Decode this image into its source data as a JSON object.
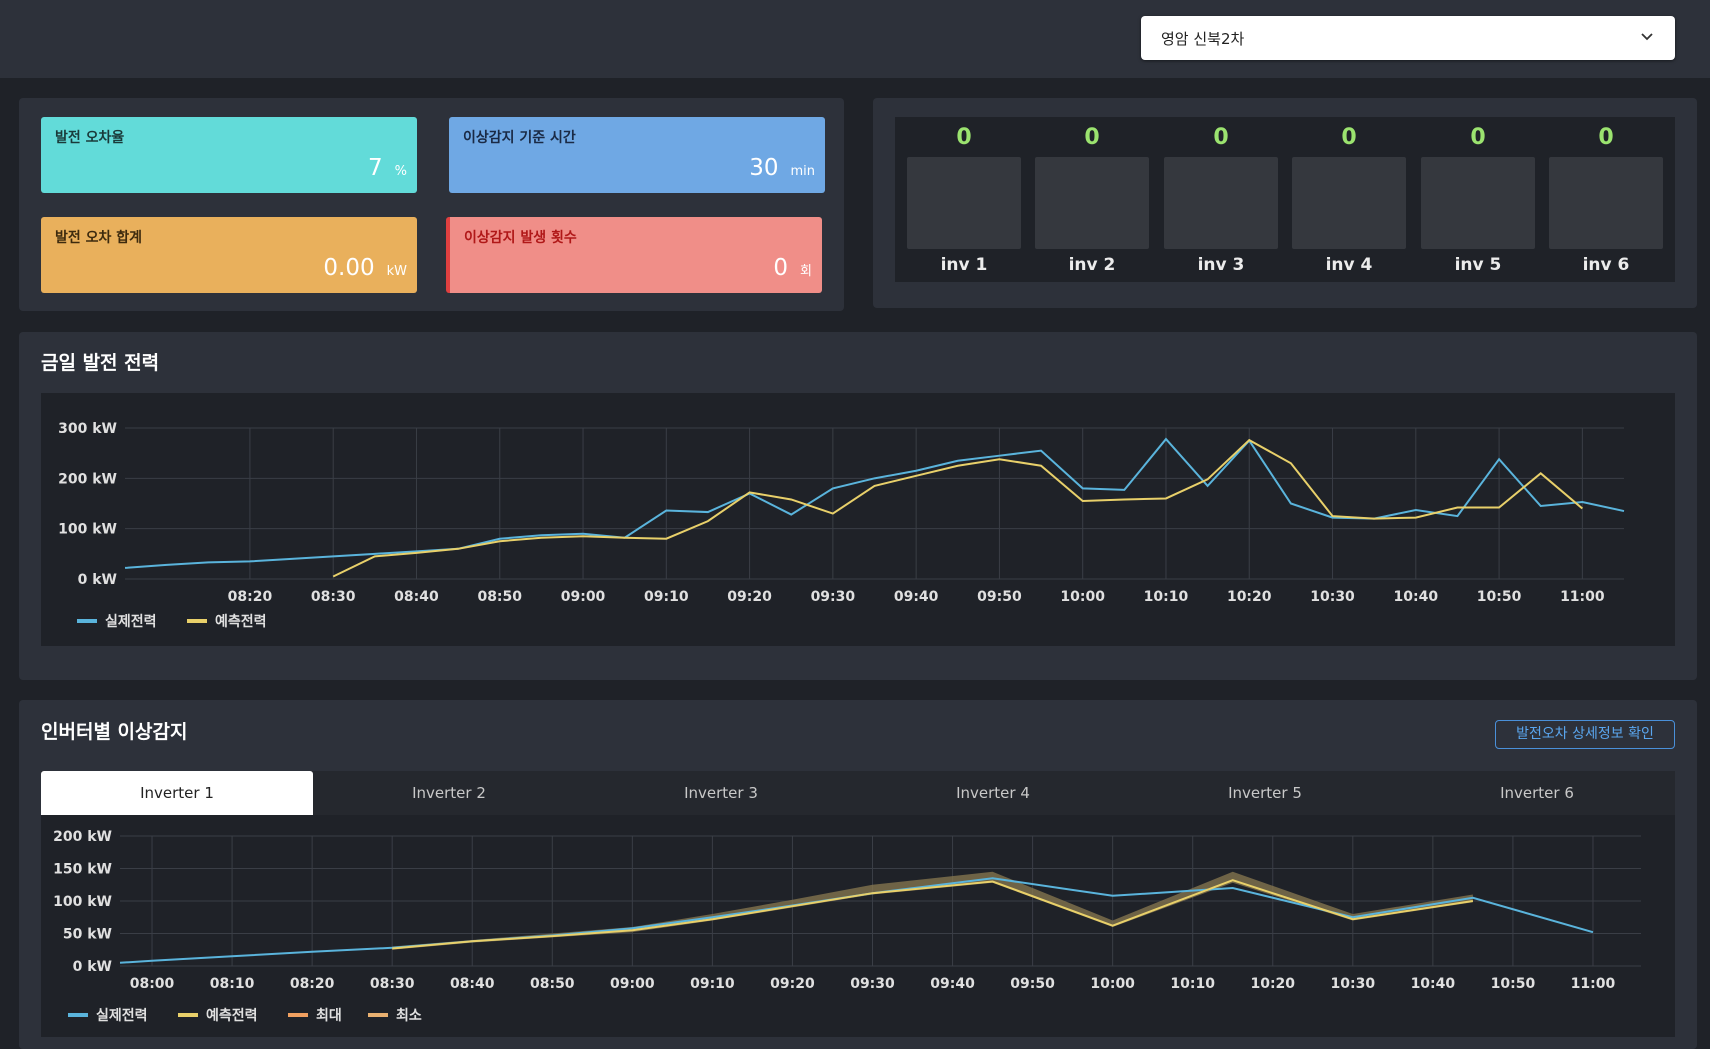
{
  "site_select": {
    "value": "영암 신북2차"
  },
  "kpi": {
    "error_rate": {
      "label": "발전 오차율",
      "value": "7",
      "unit": "%"
    },
    "anomaly_time": {
      "label": "이상감지 기준 시간",
      "value": "30",
      "unit": "min"
    },
    "error_sum": {
      "label": "발전 오차 합계",
      "value": "0.00",
      "unit": "kW"
    },
    "anomaly_count": {
      "label": "이상감지 발생 횟수",
      "value": "0",
      "unit": "회"
    }
  },
  "inverters": [
    {
      "name": "inv 1",
      "count": "0"
    },
    {
      "name": "inv 2",
      "count": "0"
    },
    {
      "name": "inv 3",
      "count": "0"
    },
    {
      "name": "inv 4",
      "count": "0"
    },
    {
      "name": "inv 5",
      "count": "0"
    },
    {
      "name": "inv 6",
      "count": "0"
    }
  ],
  "today_section": {
    "title": "금일 발전 전력"
  },
  "anomaly_section": {
    "title": "인버터별 이상감지",
    "detail_button": "발전오차 상세정보 확인",
    "tabs": [
      "Inverter 1",
      "Inverter 2",
      "Inverter 3",
      "Inverter 4",
      "Inverter 5",
      "Inverter 6"
    ],
    "active_tab": 0
  },
  "colors": {
    "actual": "#5ab4dc",
    "forecast": "#e8d06a",
    "max": "#f0a060",
    "min": "#e8b070",
    "band": "#8a7a50"
  },
  "chart_data": [
    {
      "type": "line",
      "title": "금일 발전 전력",
      "y_ticks": [
        "0 kW",
        "100 kW",
        "200 kW",
        "300 kW"
      ],
      "ylim": [
        0,
        300
      ],
      "x_ticks": [
        "08:20",
        "08:30",
        "08:40",
        "08:50",
        "09:00",
        "09:10",
        "09:20",
        "09:30",
        "09:40",
        "09:50",
        "10:00",
        "10:10",
        "10:20",
        "10:30",
        "10:40",
        "10:50",
        "11:00"
      ],
      "xlim": [
        "08:05",
        "11:05"
      ],
      "legend": [
        "실제전력",
        "예측전력"
      ],
      "grid": true,
      "series": [
        {
          "name": "실제전력",
          "x": [
            "08:05",
            "08:10",
            "08:15",
            "08:20",
            "08:25",
            "08:30",
            "08:35",
            "08:40",
            "08:45",
            "08:50",
            "08:55",
            "09:00",
            "09:05",
            "09:10",
            "09:15",
            "09:20",
            "09:25",
            "09:30",
            "09:35",
            "09:40",
            "09:45",
            "09:50",
            "09:55",
            "10:00",
            "10:05",
            "10:10",
            "10:15",
            "10:20",
            "10:25",
            "10:30",
            "10:35",
            "10:40",
            "10:45",
            "10:50",
            "10:55",
            "11:00",
            "11:05"
          ],
          "values": [
            22,
            28,
            33,
            35,
            40,
            45,
            50,
            55,
            60,
            80,
            87,
            90,
            82,
            136,
            133,
            170,
            128,
            180,
            200,
            215,
            235,
            245,
            255,
            180,
            177,
            278,
            185,
            275,
            150,
            122,
            120,
            137,
            125,
            238,
            145,
            153,
            135
          ]
        },
        {
          "name": "예측전력",
          "x": [
            "08:30",
            "08:35",
            "08:40",
            "08:45",
            "08:50",
            "08:55",
            "09:00",
            "09:05",
            "09:10",
            "09:15",
            "09:20",
            "09:25",
            "09:30",
            "09:35",
            "09:40",
            "09:45",
            "09:50",
            "09:55",
            "10:00",
            "10:05",
            "10:10",
            "10:15",
            "10:20",
            "10:25",
            "10:30",
            "10:35",
            "10:40",
            "10:45",
            "10:50",
            "10:55",
            "11:00"
          ],
          "values": [
            5,
            45,
            52,
            60,
            75,
            82,
            85,
            82,
            80,
            115,
            172,
            158,
            130,
            185,
            205,
            225,
            238,
            225,
            155,
            158,
            160,
            198,
            276,
            230,
            125,
            120,
            122,
            142,
            142,
            210,
            140
          ]
        }
      ]
    },
    {
      "type": "line",
      "y_ticks": [
        "0 kW",
        "50 kW",
        "100 kW",
        "150 kW",
        "200 kW"
      ],
      "ylim": [
        0,
        200
      ],
      "x_ticks": [
        "08:00",
        "08:10",
        "08:20",
        "08:30",
        "08:40",
        "08:50",
        "09:00",
        "09:10",
        "09:20",
        "09:30",
        "09:40",
        "09:50",
        "10:00",
        "10:10",
        "10:20",
        "10:30",
        "10:40",
        "10:50",
        "11:00"
      ],
      "xlim": [
        "07:56",
        "11:06"
      ],
      "legend": [
        "실제전력",
        "예측전력",
        "최대",
        "최소"
      ],
      "grid": true,
      "series": [
        {
          "name": "실제전력",
          "x": [
            "07:56",
            "08:00",
            "08:10",
            "08:20",
            "08:30",
            "08:40",
            "08:50",
            "09:00",
            "09:10",
            "09:20",
            "09:30",
            "09:45",
            "10:00",
            "10:15",
            "10:30",
            "10:45",
            "11:00"
          ],
          "values": [
            5,
            8,
            15,
            22,
            28,
            38,
            47,
            58,
            75,
            93,
            112,
            135,
            108,
            120,
            75,
            105,
            52
          ]
        },
        {
          "name": "예측전력",
          "x": [
            "08:30",
            "08:40",
            "08:50",
            "09:00",
            "09:10",
            "09:20",
            "09:30",
            "09:45",
            "10:00",
            "10:15",
            "10:30",
            "10:45"
          ],
          "values": [
            27,
            38,
            46,
            55,
            72,
            92,
            112,
            130,
            62,
            132,
            72,
            100
          ]
        },
        {
          "name": "최대",
          "x": [
            "08:30",
            "08:40",
            "08:50",
            "09:00",
            "09:10",
            "09:20",
            "09:30",
            "09:45",
            "10:00",
            "10:15",
            "10:30",
            "10:45"
          ],
          "values": [
            30,
            40,
            50,
            60,
            80,
            102,
            125,
            145,
            70,
            145,
            80,
            110
          ]
        },
        {
          "name": "최소",
          "x": [
            "08:30",
            "08:40",
            "08:50",
            "09:00",
            "09:10",
            "09:20",
            "09:30",
            "09:45",
            "10:00",
            "10:15",
            "10:30",
            "10:45"
          ],
          "values": [
            25,
            36,
            44,
            52,
            70,
            90,
            110,
            128,
            60,
            128,
            70,
            98
          ]
        }
      ]
    }
  ]
}
